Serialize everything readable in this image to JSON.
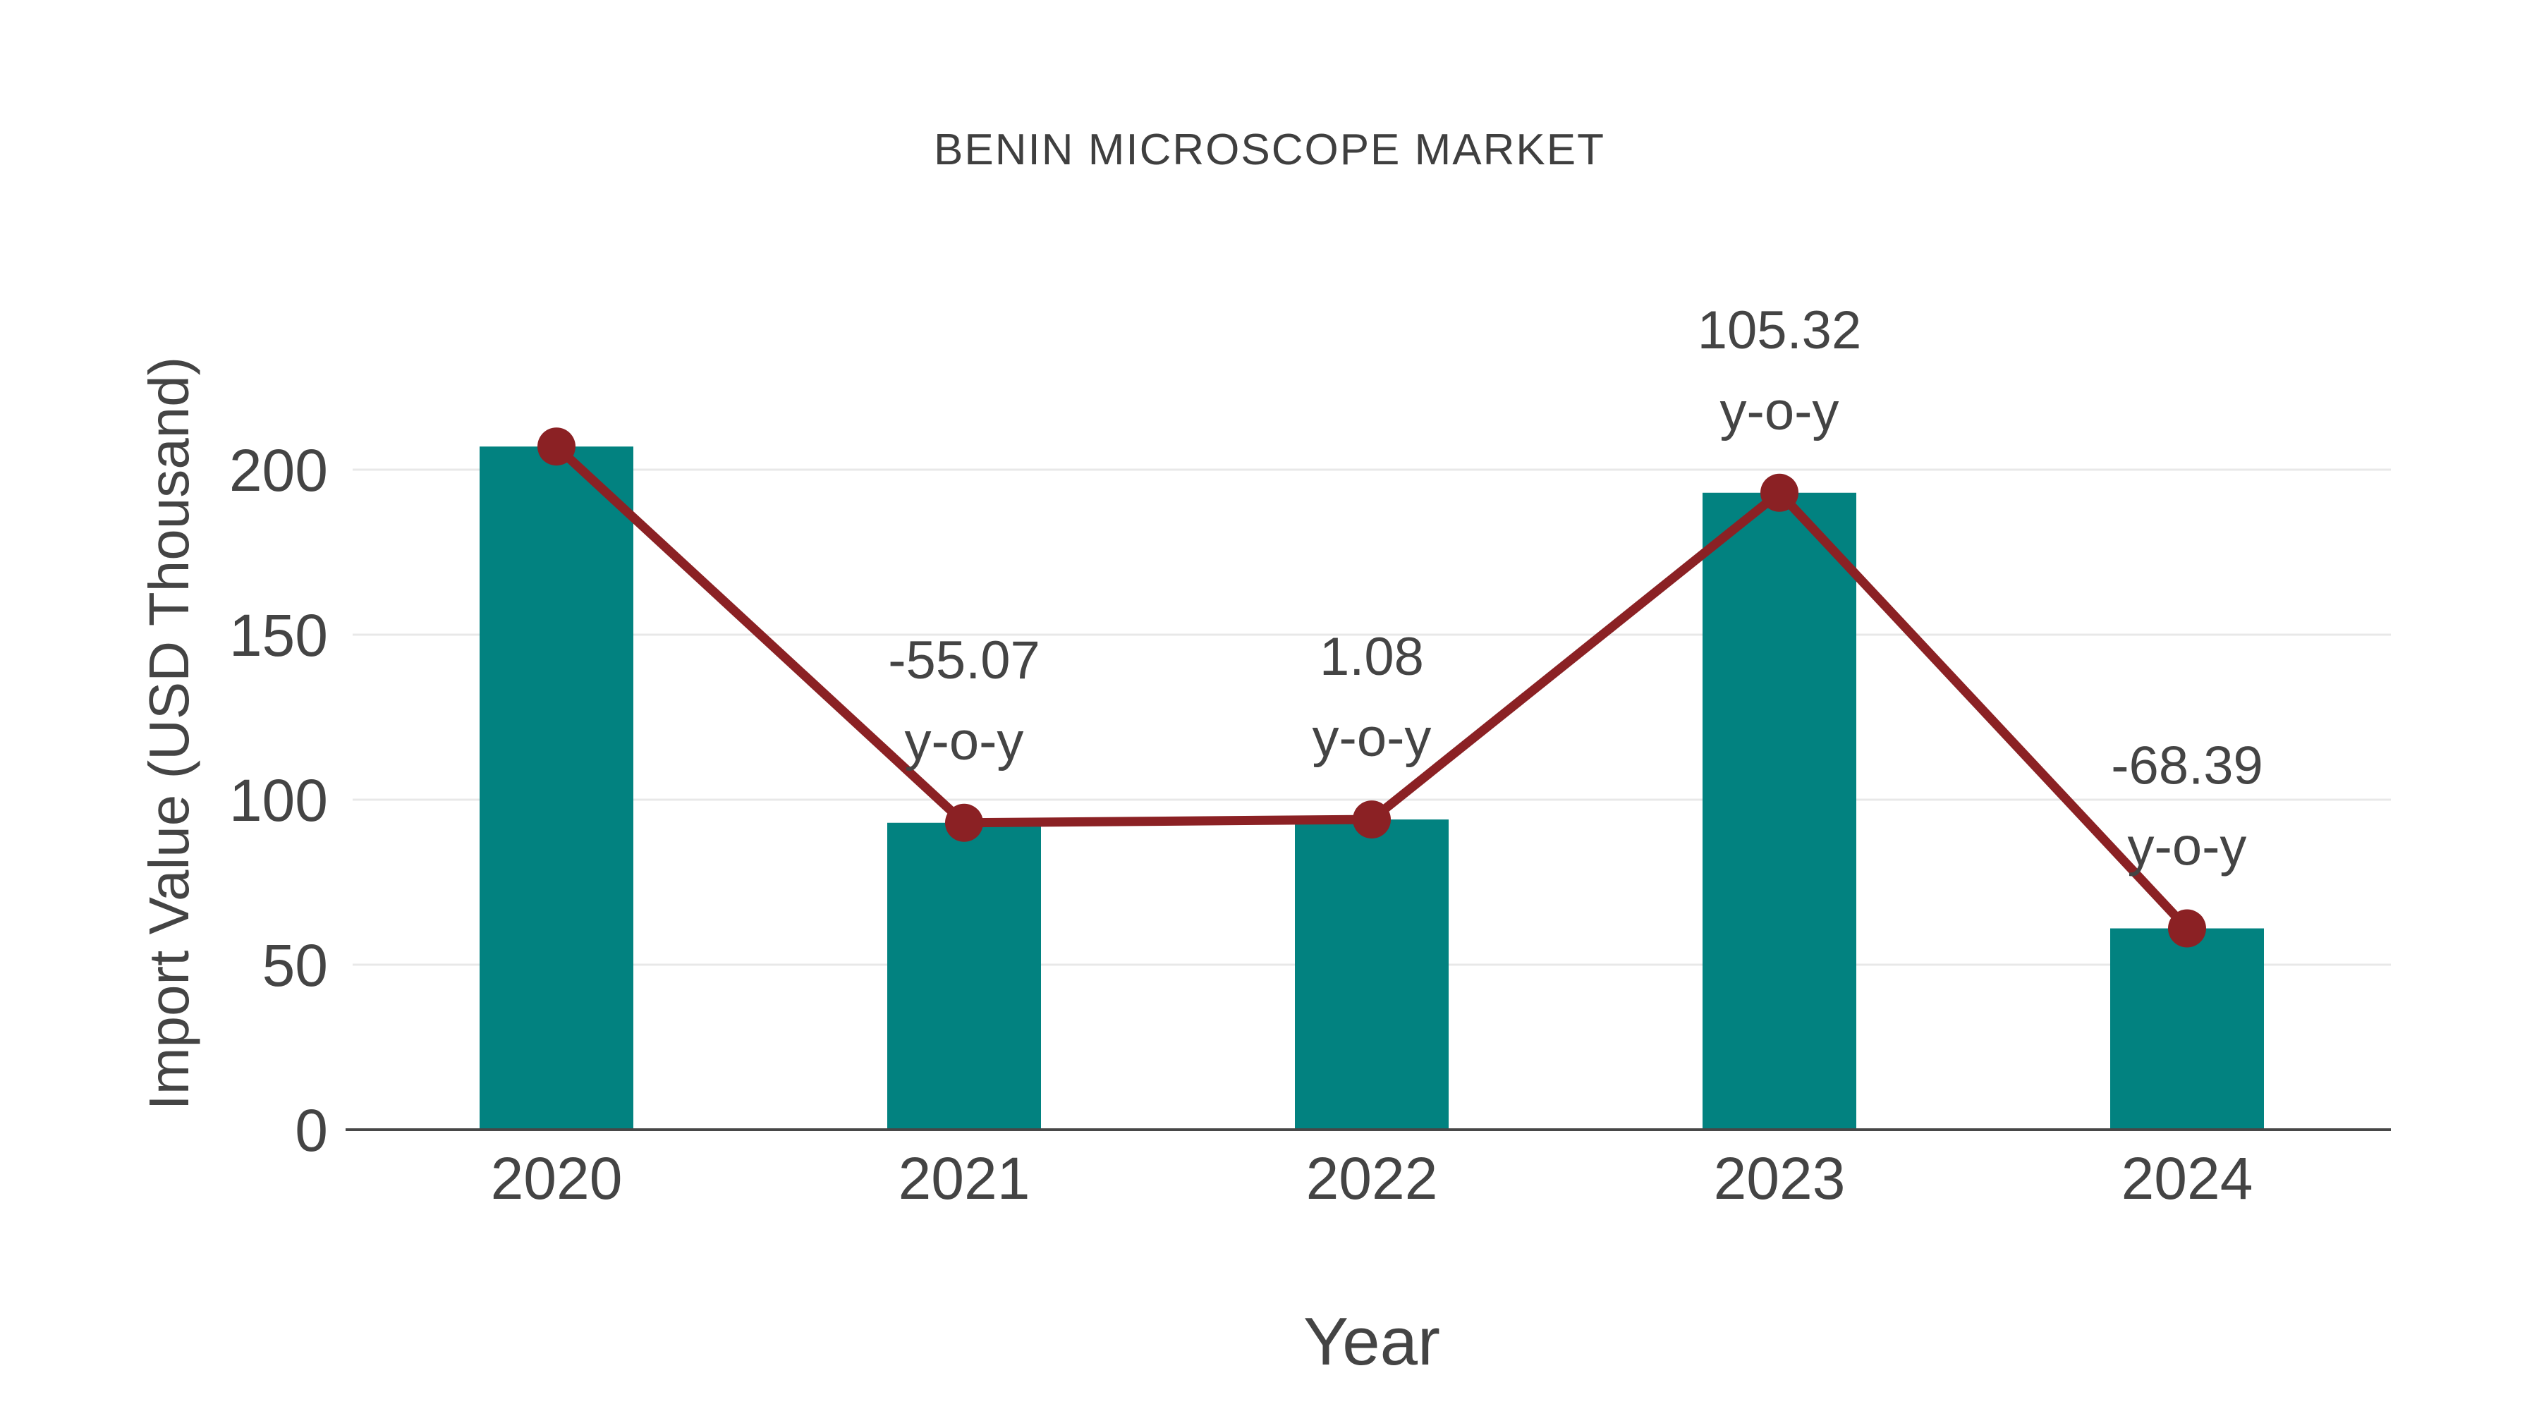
{
  "page": {
    "background": "#ffffff"
  },
  "chart_data": {
    "type": "bar",
    "title": "BENIN MICROSCOPE MARKET",
    "xlabel": "Year",
    "ylabel": "Import Value (USD Thousand)",
    "categories": [
      "2020",
      "2021",
      "2022",
      "2023",
      "2024"
    ],
    "series": [
      {
        "name": "Import Value bars",
        "type": "bar",
        "values": [
          207,
          93,
          94,
          193,
          61
        ],
        "color": "#028280"
      },
      {
        "name": "Import Value trend line",
        "type": "line",
        "values": [
          207,
          93,
          94,
          193,
          61
        ],
        "color": "#8b2124"
      }
    ],
    "annotations": [
      {
        "category": "2021",
        "value_text": "-55.07",
        "suffix_text": "y-o-y"
      },
      {
        "category": "2022",
        "value_text": "1.08",
        "suffix_text": "y-o-y"
      },
      {
        "category": "2023",
        "value_text": "105.32",
        "suffix_text": "y-o-y"
      },
      {
        "category": "2024",
        "value_text": "-68.39",
        "suffix_text": "y-o-y"
      }
    ],
    "yticks": [
      0,
      50,
      100,
      150,
      200
    ],
    "ylim": [
      0,
      240
    ],
    "grid": true,
    "legend_position": "none",
    "colors": {
      "grid": "#e8e8e8",
      "axis": "#474747",
      "text": "#444444",
      "title_text": "#3f3f3f"
    }
  }
}
